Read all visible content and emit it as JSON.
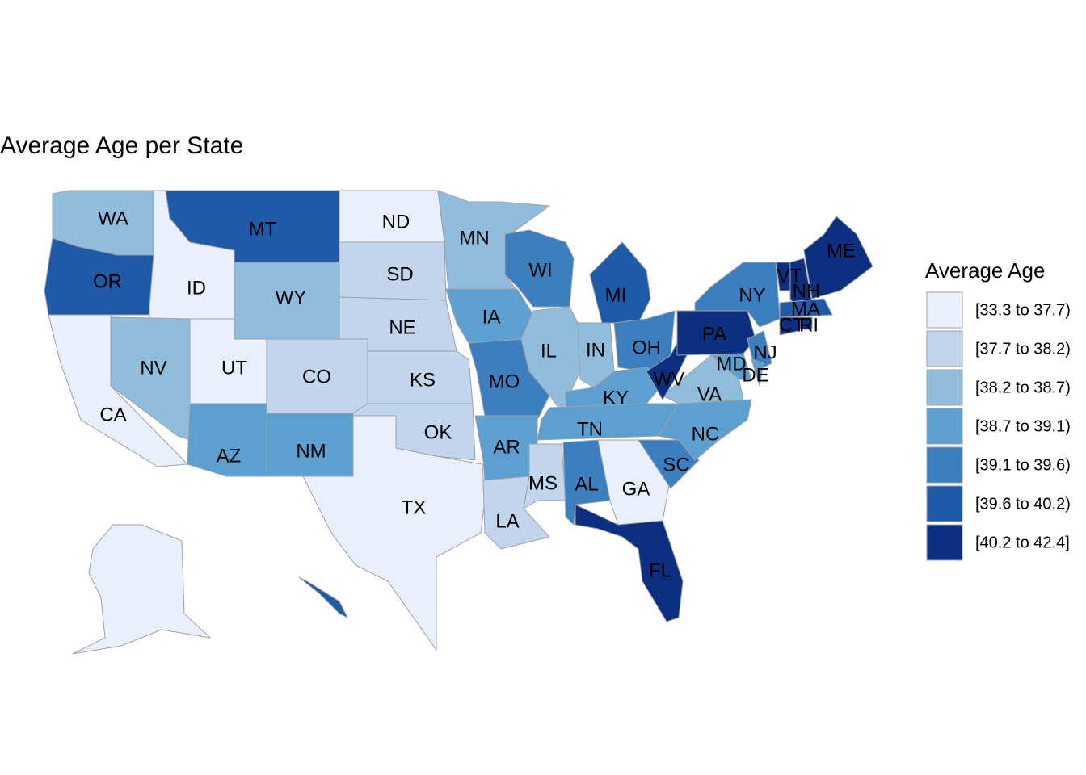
{
  "title": "Average Age per State",
  "legend": {
    "title": "Average Age",
    "items": [
      {
        "label": "[33.3 to 37.7)",
        "color": "#eaf0fb"
      },
      {
        "label": "[37.7 to 38.2)",
        "color": "#c1d5ec"
      },
      {
        "label": "[38.2 to 38.7)",
        "color": "#91bddd"
      },
      {
        "label": "[38.7 to 39.1)",
        "color": "#5ca0cf"
      },
      {
        "label": "[39.1 to 39.6)",
        "color": "#3b7fbf"
      },
      {
        "label": "[39.6 to 40.2)",
        "color": "#1f5aa8"
      },
      {
        "label": "[40.2 to 42.4]",
        "color": "#0c2f80"
      }
    ]
  },
  "states": [
    {
      "label": "WA",
      "color": "#91bddd"
    },
    {
      "label": "OR",
      "color": "#1f5aa8"
    },
    {
      "label": "CA",
      "color": "#eaf0fb"
    },
    {
      "label": "ID",
      "color": "#eaf0fb"
    },
    {
      "label": "MT",
      "color": "#1f5aa8"
    },
    {
      "label": "ND",
      "color": "#eaf0fb"
    },
    {
      "label": "SD",
      "color": "#c1d5ec"
    },
    {
      "label": "WY",
      "color": "#91bddd"
    },
    {
      "label": "NE",
      "color": "#c1d5ec"
    },
    {
      "label": "NV",
      "color": "#91bddd"
    },
    {
      "label": "UT",
      "color": "#eaf0fb"
    },
    {
      "label": "CO",
      "color": "#c1d5ec"
    },
    {
      "label": "KS",
      "color": "#c1d5ec"
    },
    {
      "label": "AZ",
      "color": "#5ca0cf"
    },
    {
      "label": "NM",
      "color": "#5ca0cf"
    },
    {
      "label": "OK",
      "color": "#c1d5ec"
    },
    {
      "label": "TX",
      "color": "#eaf0fb"
    },
    {
      "label": "MN",
      "color": "#91bddd"
    },
    {
      "label": "IA",
      "color": "#5ca0cf"
    },
    {
      "label": "MO",
      "color": "#3b7fbf"
    },
    {
      "label": "AR",
      "color": "#5ca0cf"
    },
    {
      "label": "LA",
      "color": "#c1d5ec"
    },
    {
      "label": "WI",
      "color": "#3b7fbf"
    },
    {
      "label": "IL",
      "color": "#91bddd"
    },
    {
      "label": "MI",
      "color": "#1f5aa8"
    },
    {
      "label": "IN",
      "color": "#91bddd"
    },
    {
      "label": "OH",
      "color": "#3b7fbf"
    },
    {
      "label": "KY",
      "color": "#5ca0cf"
    },
    {
      "label": "TN",
      "color": "#5ca0cf"
    },
    {
      "label": "MS",
      "color": "#c1d5ec"
    },
    {
      "label": "AL",
      "color": "#3b7fbf"
    },
    {
      "label": "GA",
      "color": "#eaf0fb"
    },
    {
      "label": "FL",
      "color": "#0c2f80"
    },
    {
      "label": "SC",
      "color": "#3b7fbf"
    },
    {
      "label": "NC",
      "color": "#5ca0cf"
    },
    {
      "label": "VA",
      "color": "#91bddd"
    },
    {
      "label": "WV",
      "color": "#0c2f80"
    },
    {
      "label": "PA",
      "color": "#0c2f80"
    },
    {
      "label": "NY",
      "color": "#3b7fbf"
    },
    {
      "label": "NJ",
      "color": "#3b7fbf"
    },
    {
      "label": "MD",
      "color": "#5ca0cf"
    },
    {
      "label": "DE",
      "color": "#5ca0cf"
    },
    {
      "label": "VT",
      "color": "#0c2f80"
    },
    {
      "label": "NH",
      "color": "#0c2f80"
    },
    {
      "label": "ME",
      "color": "#0c2f80"
    },
    {
      "label": "MA",
      "color": "#1f5aa8"
    },
    {
      "label": "CT",
      "color": "#0c2f80"
    },
    {
      "label": "RI",
      "color": "#0c2f80"
    },
    {
      "label": null,
      "color": "#eaf0fb"
    },
    {
      "label": null,
      "color": "#1f5aa8"
    }
  ]
}
